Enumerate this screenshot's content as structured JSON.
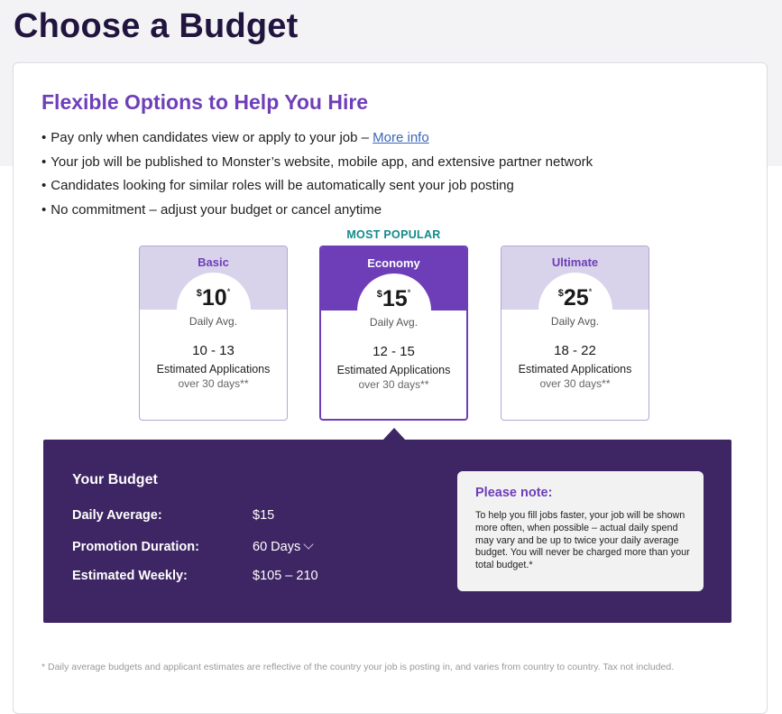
{
  "page": {
    "title": "Choose a Budget"
  },
  "intro": {
    "subtitle": "Flexible Options to Help You Hire",
    "bullets": [
      "Pay only when candidates view or apply to your job  –",
      "Your job will be published to Monster’s website, mobile app, and extensive partner network",
      "Candidates looking for similar roles will be automatically sent your job posting",
      "No commitment – adjust your budget or cancel anytime"
    ],
    "more_info_link": "More info"
  },
  "plans": {
    "popular_label": "MOST POPULAR",
    "selected": "Economy",
    "items": [
      {
        "name": "Basic",
        "currency": "$",
        "price": "10",
        "asterisk": "*",
        "daily_label": "Daily Avg.",
        "range": "10 - 13",
        "est_label": "Estimated Applications",
        "period": "over 30 days**"
      },
      {
        "name": "Economy",
        "currency": "$",
        "price": "15",
        "asterisk": "*",
        "daily_label": "Daily Avg.",
        "range": "12 - 15",
        "est_label": "Estimated Applications",
        "period": "over 30 days**"
      },
      {
        "name": "Ultimate",
        "currency": "$",
        "price": "25",
        "asterisk": "*",
        "daily_label": "Daily Avg.",
        "range": "18 - 22",
        "est_label": "Estimated Applications",
        "period": "over 30 days**"
      }
    ]
  },
  "budget": {
    "title": "Your Budget",
    "rows": [
      {
        "label": "Daily Average:",
        "value": "$15"
      },
      {
        "label": "Promotion Duration:",
        "value": "60 Days"
      },
      {
        "label": "Estimated Weekly:",
        "value": "$105 – 210"
      }
    ],
    "note": {
      "title": "Please note:",
      "text": "To help you fill jobs faster, your job will be shown more often, when possible – actual daily spend may vary and be up to twice your daily average budget. You will never be charged more than your total budget.*"
    }
  },
  "footnote": "* Daily average budgets and applicant estimates are reflective of the country your job is posting in, and varies from country to country. Tax not included.",
  "colors": {
    "title": "#21153f",
    "accent_purple": "#6d3eb8",
    "plan_header_light": "#d8d3ea",
    "budget_panel": "#3e2563",
    "popular_teal": "#128a8a",
    "link": "#3a66b8"
  },
  "icons": {
    "duration_dropdown": "chevron-down-icon"
  }
}
